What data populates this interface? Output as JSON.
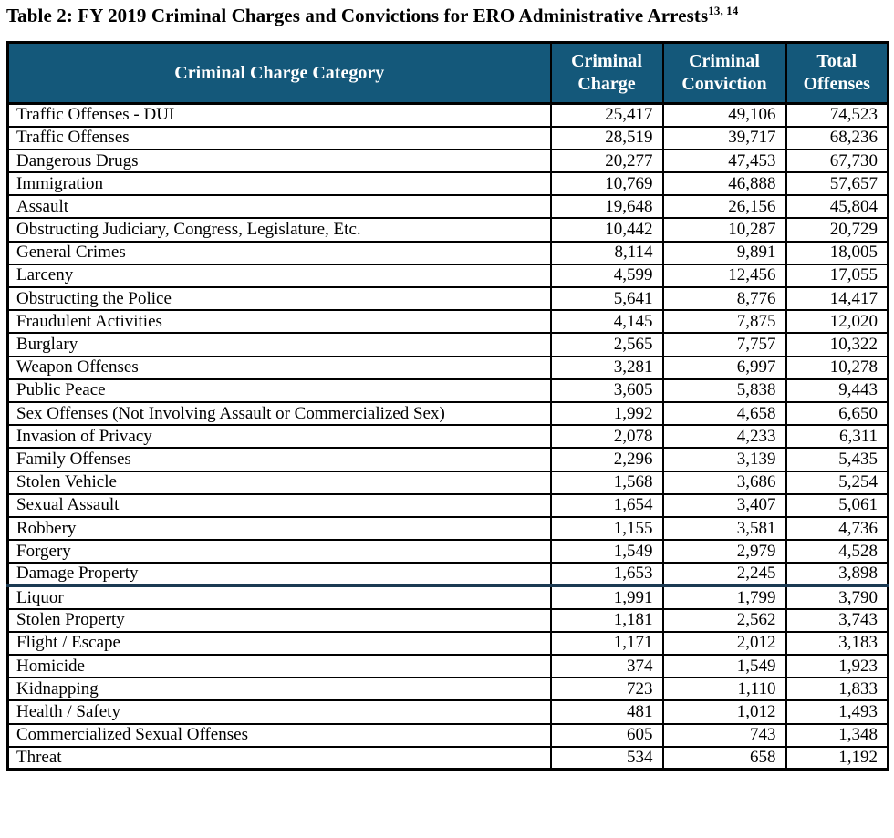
{
  "page": {
    "title": "Table 2: FY 2019 Criminal Charges and Convictions for ERO Administrative Arrests",
    "title_superscript": "13, 14"
  },
  "table": {
    "columns": [
      "Criminal Charge Category",
      "Criminal Charge",
      "Criminal Conviction",
      "Total Offenses"
    ],
    "section_break_after": "Damage Property",
    "colors": {
      "header_bg": "#14587A",
      "header_text": "#FFFFFF",
      "border": "#000000",
      "section_break_border": "#1B3A52"
    },
    "rows": [
      {
        "category": "Traffic Offenses - DUI",
        "criminal_charge": "25,417",
        "criminal_conviction": "49,106",
        "total_offenses": "74,523"
      },
      {
        "category": "Traffic Offenses",
        "criminal_charge": "28,519",
        "criminal_conviction": "39,717",
        "total_offenses": "68,236"
      },
      {
        "category": "Dangerous Drugs",
        "criminal_charge": "20,277",
        "criminal_conviction": "47,453",
        "total_offenses": "67,730"
      },
      {
        "category": "Immigration",
        "criminal_charge": "10,769",
        "criminal_conviction": "46,888",
        "total_offenses": "57,657"
      },
      {
        "category": "Assault",
        "criminal_charge": "19,648",
        "criminal_conviction": "26,156",
        "total_offenses": "45,804"
      },
      {
        "category": "Obstructing Judiciary, Congress, Legislature, Etc.",
        "criminal_charge": "10,442",
        "criminal_conviction": "10,287",
        "total_offenses": "20,729"
      },
      {
        "category": "General Crimes",
        "criminal_charge": "8,114",
        "criminal_conviction": "9,891",
        "total_offenses": "18,005"
      },
      {
        "category": "Larceny",
        "criminal_charge": "4,599",
        "criminal_conviction": "12,456",
        "total_offenses": "17,055"
      },
      {
        "category": "Obstructing the Police",
        "criminal_charge": "5,641",
        "criminal_conviction": "8,776",
        "total_offenses": "14,417"
      },
      {
        "category": "Fraudulent Activities",
        "criminal_charge": "4,145",
        "criminal_conviction": "7,875",
        "total_offenses": "12,020"
      },
      {
        "category": "Burglary",
        "criminal_charge": "2,565",
        "criminal_conviction": "7,757",
        "total_offenses": "10,322"
      },
      {
        "category": "Weapon Offenses",
        "criminal_charge": "3,281",
        "criminal_conviction": "6,997",
        "total_offenses": "10,278"
      },
      {
        "category": "Public Peace",
        "criminal_charge": "3,605",
        "criminal_conviction": "5,838",
        "total_offenses": "9,443"
      },
      {
        "category": "Sex Offenses (Not Involving Assault or Commercialized Sex)",
        "criminal_charge": "1,992",
        "criminal_conviction": "4,658",
        "total_offenses": "6,650"
      },
      {
        "category": "Invasion of Privacy",
        "criminal_charge": "2,078",
        "criminal_conviction": "4,233",
        "total_offenses": "6,311"
      },
      {
        "category": "Family Offenses",
        "criminal_charge": "2,296",
        "criminal_conviction": "3,139",
        "total_offenses": "5,435"
      },
      {
        "category": "Stolen Vehicle",
        "criminal_charge": "1,568",
        "criminal_conviction": "3,686",
        "total_offenses": "5,254"
      },
      {
        "category": "Sexual Assault",
        "criminal_charge": "1,654",
        "criminal_conviction": "3,407",
        "total_offenses": "5,061"
      },
      {
        "category": "Robbery",
        "criminal_charge": "1,155",
        "criminal_conviction": "3,581",
        "total_offenses": "4,736"
      },
      {
        "category": "Forgery",
        "criminal_charge": "1,549",
        "criminal_conviction": "2,979",
        "total_offenses": "4,528"
      },
      {
        "category": "Damage Property",
        "criminal_charge": "1,653",
        "criminal_conviction": "2,245",
        "total_offenses": "3,898"
      },
      {
        "category": "Liquor",
        "criminal_charge": "1,991",
        "criminal_conviction": "1,799",
        "total_offenses": "3,790"
      },
      {
        "category": "Stolen Property",
        "criminal_charge": "1,181",
        "criminal_conviction": "2,562",
        "total_offenses": "3,743"
      },
      {
        "category": "Flight / Escape",
        "criminal_charge": "1,171",
        "criminal_conviction": "2,012",
        "total_offenses": "3,183"
      },
      {
        "category": "Homicide",
        "criminal_charge": "374",
        "criminal_conviction": "1,549",
        "total_offenses": "1,923"
      },
      {
        "category": "Kidnapping",
        "criminal_charge": "723",
        "criminal_conviction": "1,110",
        "total_offenses": "1,833"
      },
      {
        "category": "Health / Safety",
        "criminal_charge": "481",
        "criminal_conviction": "1,012",
        "total_offenses": "1,493"
      },
      {
        "category": "Commercialized Sexual Offenses",
        "criminal_charge": "605",
        "criminal_conviction": "743",
        "total_offenses": "1,348"
      },
      {
        "category": "Threat",
        "criminal_charge": "534",
        "criminal_conviction": "658",
        "total_offenses": "1,192"
      }
    ]
  }
}
